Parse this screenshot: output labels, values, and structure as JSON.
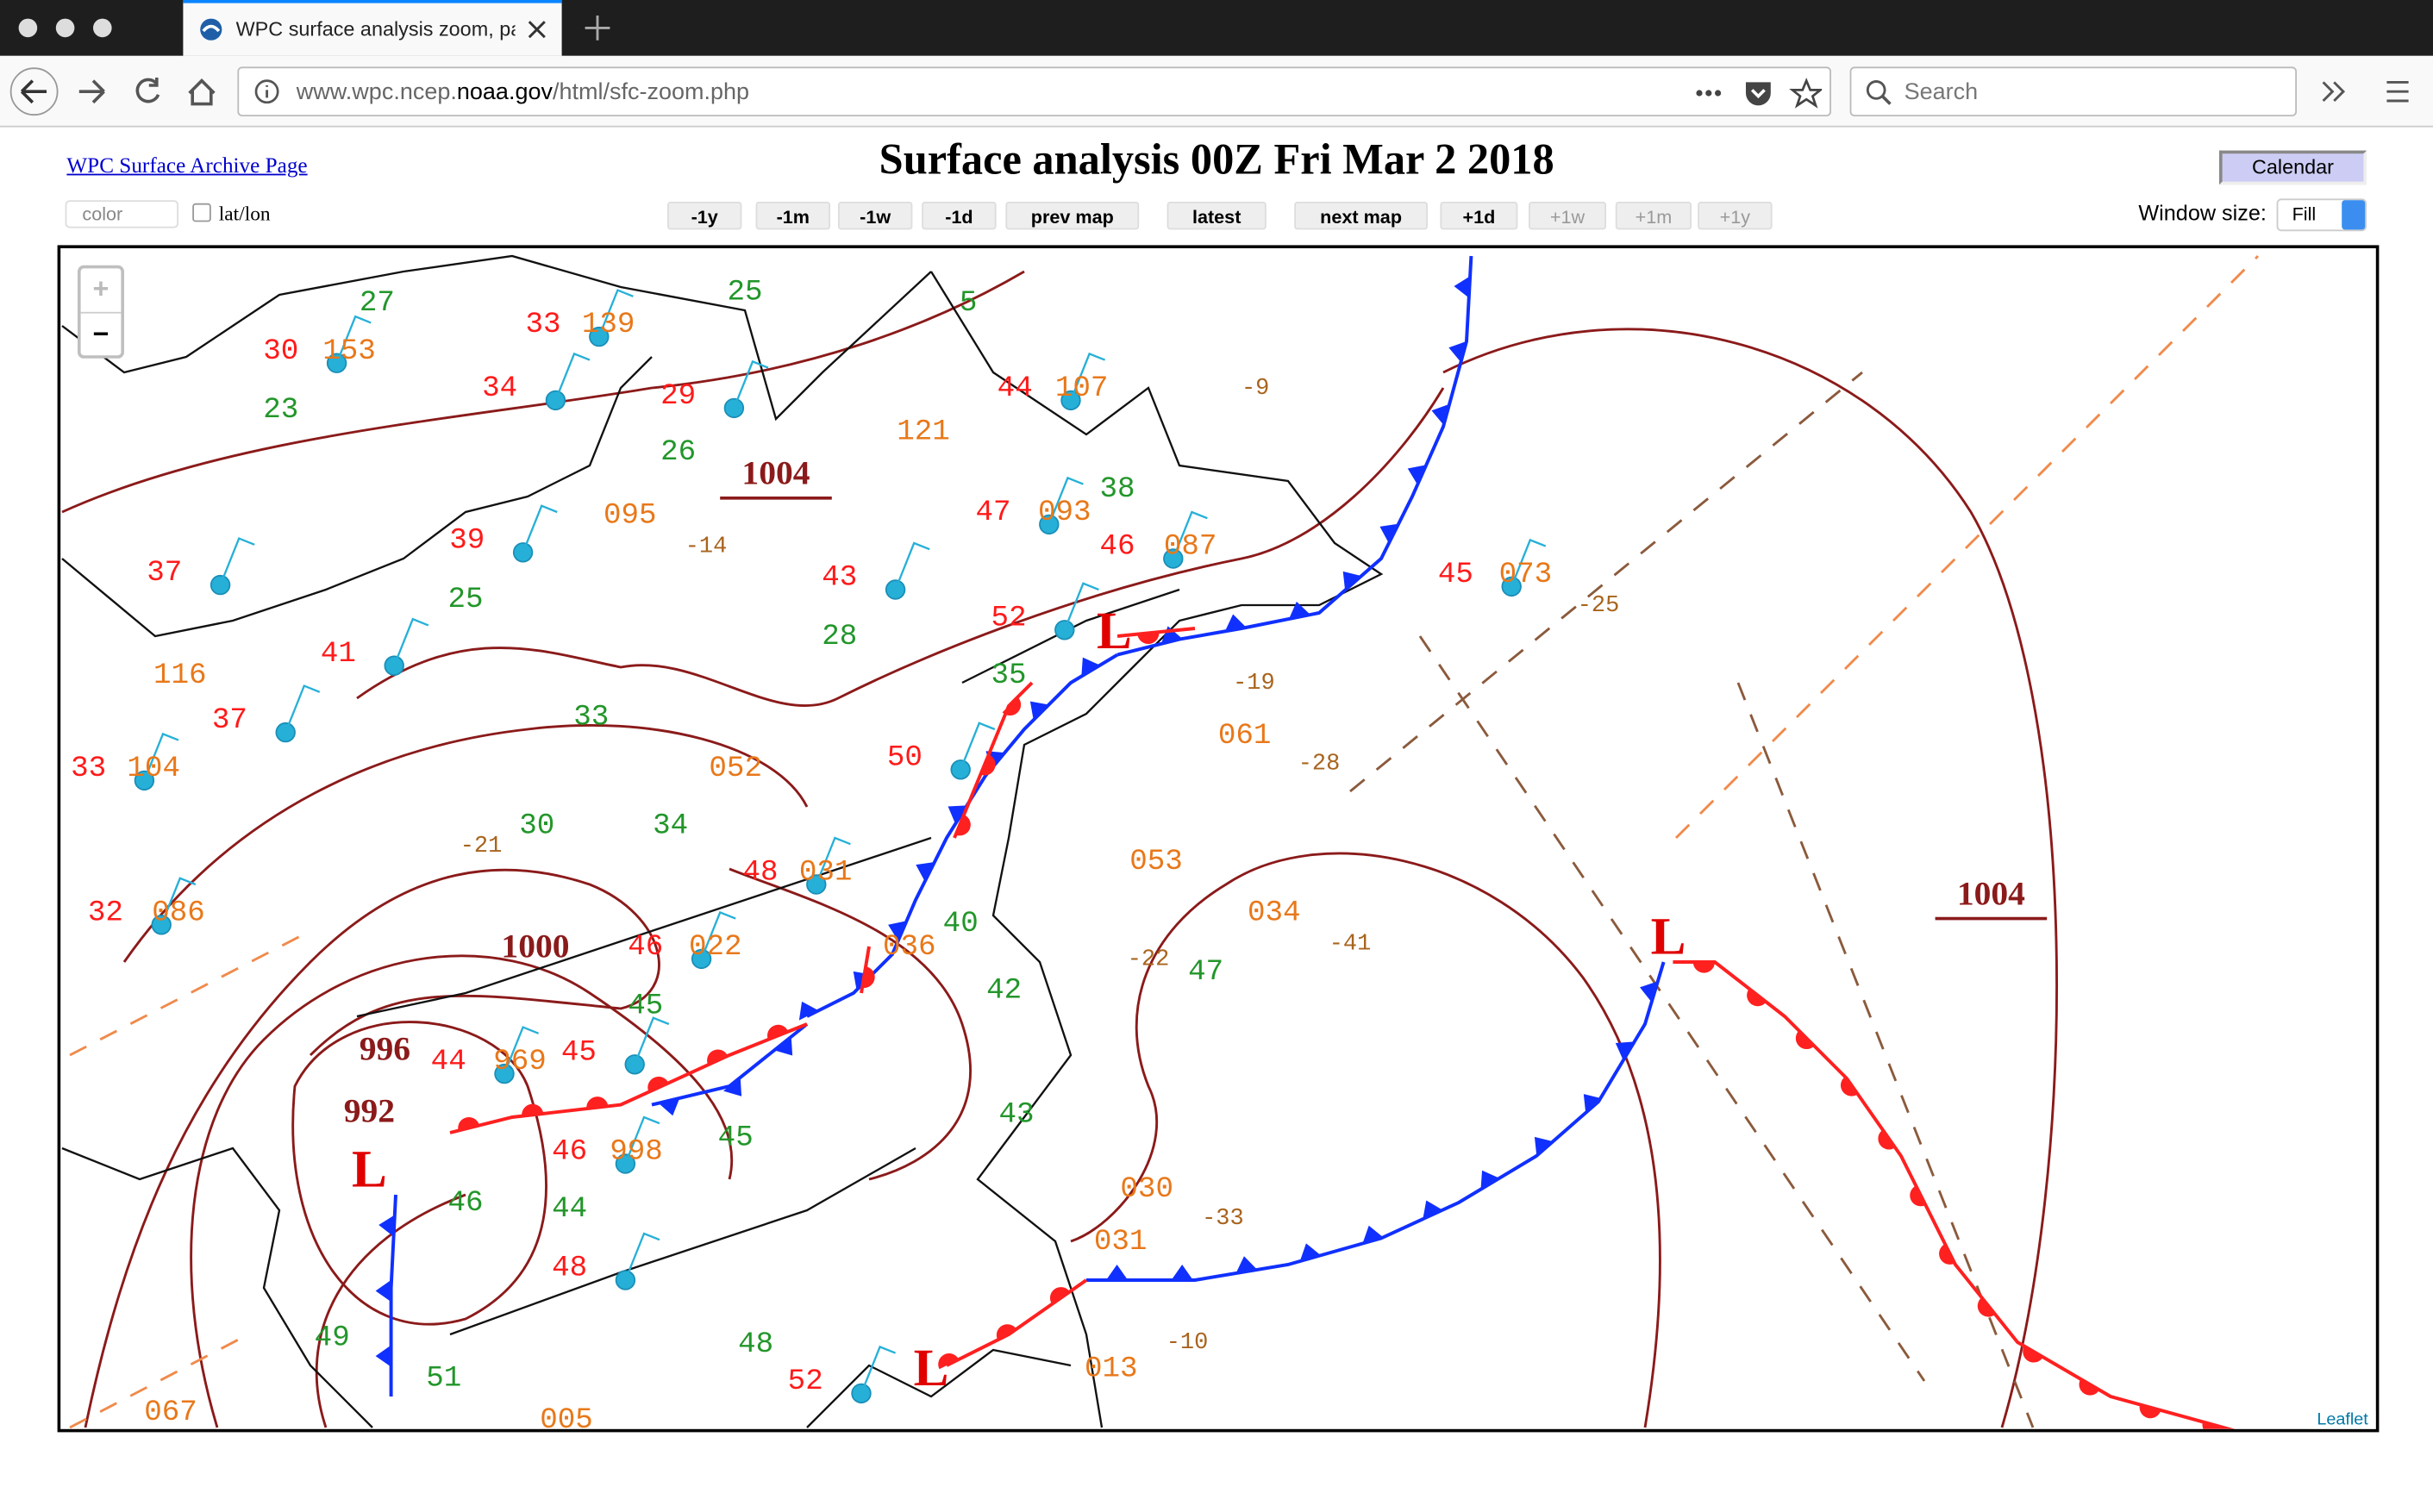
{
  "browser": {
    "tab_title": "WPC surface analysis zoom, pa",
    "url": {
      "subdomain": "www.wpc.ncep.",
      "domain": "noaa.gov",
      "path": "/html/sfc-zoom.php"
    },
    "search_placeholder": "Search"
  },
  "page": {
    "archive_link": "WPC Surface Archive Page",
    "title": "Surface analysis 00Z Fri Mar 2 2018",
    "calendar_button": "Calendar",
    "color_select": "color",
    "latlon_label": "lat/lon",
    "nav_buttons": [
      {
        "label": "-1y",
        "enabled": true
      },
      {
        "label": "-1m",
        "enabled": true
      },
      {
        "label": "-1w",
        "enabled": true
      },
      {
        "label": "-1d",
        "enabled": true
      },
      {
        "label": "prev map",
        "enabled": true
      },
      {
        "label": "latest",
        "enabled": true
      },
      {
        "label": "next map",
        "enabled": true
      },
      {
        "label": "+1d",
        "enabled": true
      },
      {
        "label": "+1w",
        "enabled": false
      },
      {
        "label": "+1m",
        "enabled": false
      },
      {
        "label": "+1y",
        "enabled": false
      }
    ],
    "window_size_label": "Window size:",
    "window_size_value": "Fill"
  },
  "map": {
    "zoom_in": "+",
    "zoom_out": "−",
    "attribution": "Leaflet",
    "isobar_labels": [
      "1004",
      "1004",
      "1000",
      "996",
      "992"
    ],
    "lows": [
      "L",
      "L",
      "L",
      "L"
    ],
    "stations": {
      "temperatures": [
        "30",
        "33",
        "34",
        "29",
        "39",
        "37",
        "41",
        "37",
        "33",
        "43",
        "44",
        "47",
        "46",
        "50",
        "48",
        "46",
        "32",
        "45",
        "44",
        "46",
        "45",
        "52",
        "48",
        "52"
      ],
      "dewpoints": [
        "27",
        "23",
        "26",
        "25",
        "28",
        "33",
        "30",
        "34",
        "45",
        "45",
        "44",
        "46",
        "49",
        "51",
        "48",
        "40",
        "42",
        "47",
        "38",
        "5",
        "35",
        "43",
        "25"
      ],
      "pressures": [
        "153",
        "139",
        "095",
        "087",
        "073",
        "052",
        "104",
        "031",
        "022",
        "969",
        "998",
        "121",
        "107",
        "093",
        "086",
        "036",
        "034",
        "053",
        "061",
        "030",
        "031",
        "067",
        "005",
        "013",
        "116"
      ],
      "tendencies": [
        "-14",
        "-25",
        "-28",
        "-41",
        "-19",
        "-9",
        "-22",
        "-33",
        "-10",
        "-21"
      ]
    }
  }
}
